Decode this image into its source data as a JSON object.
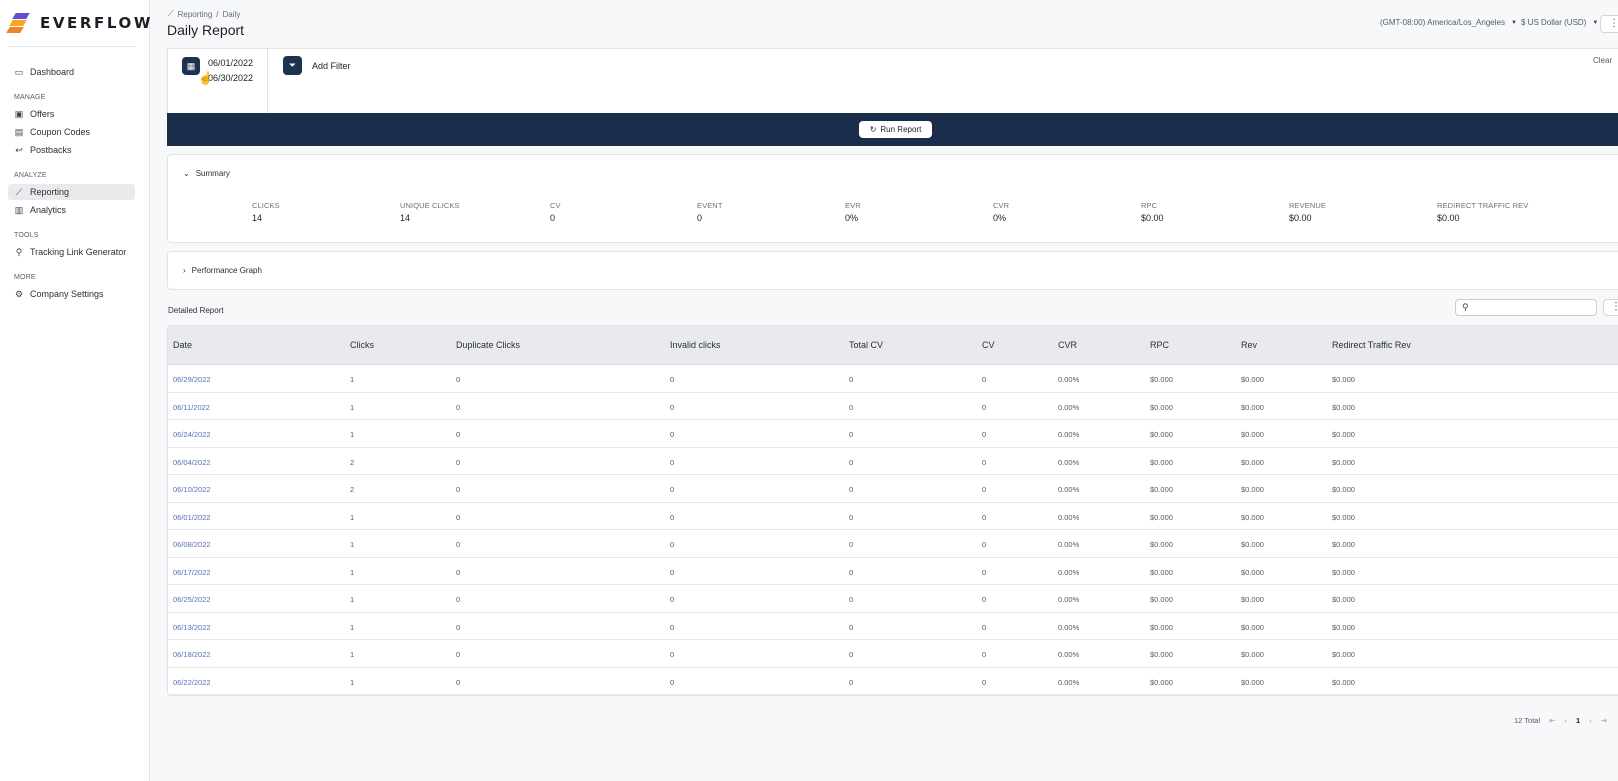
{
  "brand": {
    "name": "EVERFLOW"
  },
  "sidebar": {
    "items": [
      {
        "label": "Dashboard",
        "icon": "monitor-icon"
      },
      {
        "section": "MANAGE"
      },
      {
        "label": "Offers",
        "icon": "offers-icon"
      },
      {
        "label": "Coupon Codes",
        "icon": "coupon-icon"
      },
      {
        "label": "Postbacks",
        "icon": "postback-icon"
      },
      {
        "section": "ANALYZE"
      },
      {
        "label": "Reporting",
        "icon": "reporting-icon",
        "active": true
      },
      {
        "label": "Analytics",
        "icon": "analytics-icon"
      },
      {
        "section": "TOOLS"
      },
      {
        "label": "Tracking Link Generator",
        "icon": "link-icon"
      },
      {
        "section": "MORE"
      },
      {
        "label": "Company Settings",
        "icon": "gear-icon"
      }
    ],
    "dashboard": "Dashboard",
    "manage": "MANAGE",
    "offers": "Offers",
    "coupon_codes": "Coupon Codes",
    "postbacks": "Postbacks",
    "analyze": "ANALYZE",
    "reporting": "Reporting",
    "analytics": "Analytics",
    "tools": "TOOLS",
    "tracking_link_generator": "Tracking Link Generator",
    "more": "MORE",
    "company_settings": "Company Settings"
  },
  "header": {
    "breadcrumb_parent": "Reporting",
    "breadcrumb_sep": "/",
    "breadcrumb_current": "Daily",
    "title": "Daily Report",
    "timezone": "(GMT-08:00) America/Los_Angeles",
    "currency": "$ US Dollar (USD)"
  },
  "filters": {
    "date_start": "06/01/2022",
    "date_end": "06/30/2022",
    "add_filter": "Add Filter",
    "clear": "Clear",
    "run_report": "Run Report"
  },
  "summary": {
    "title": "Summary",
    "metrics": [
      {
        "label": "CLICKS",
        "value": "14"
      },
      {
        "label": "UNIQUE CLICKS",
        "value": "14"
      },
      {
        "label": "CV",
        "value": "0"
      },
      {
        "label": "EVENT",
        "value": "0"
      },
      {
        "label": "EVR",
        "value": "0%"
      },
      {
        "label": "CVR",
        "value": "0%"
      },
      {
        "label": "RPC",
        "value": "$0.00"
      },
      {
        "label": "REVENUE",
        "value": "$0.00"
      },
      {
        "label": "REDIRECT TRAFFIC REV",
        "value": "$0.00"
      }
    ]
  },
  "performance_graph": {
    "title": "Performance Graph"
  },
  "report": {
    "title": "Detailed Report",
    "columns": [
      "Date",
      "Clicks",
      "Duplicate Clicks",
      "Invalid clicks",
      "Total CV",
      "CV",
      "CVR",
      "RPC",
      "Rev",
      "Redirect Traffic Rev"
    ],
    "rows": [
      [
        "06/29/2022",
        "1",
        "0",
        "0",
        "0",
        "0",
        "0.00%",
        "$0.000",
        "$0.000",
        "$0.000"
      ],
      [
        "06/11/2022",
        "1",
        "0",
        "0",
        "0",
        "0",
        "0.00%",
        "$0.000",
        "$0.000",
        "$0.000"
      ],
      [
        "06/24/2022",
        "1",
        "0",
        "0",
        "0",
        "0",
        "0.00%",
        "$0.000",
        "$0.000",
        "$0.000"
      ],
      [
        "06/04/2022",
        "2",
        "0",
        "0",
        "0",
        "0",
        "0.00%",
        "$0.000",
        "$0.000",
        "$0.000"
      ],
      [
        "06/10/2022",
        "2",
        "0",
        "0",
        "0",
        "0",
        "0.00%",
        "$0.000",
        "$0.000",
        "$0.000"
      ],
      [
        "06/01/2022",
        "1",
        "0",
        "0",
        "0",
        "0",
        "0.00%",
        "$0.000",
        "$0.000",
        "$0.000"
      ],
      [
        "06/08/2022",
        "1",
        "0",
        "0",
        "0",
        "0",
        "0.00%",
        "$0.000",
        "$0.000",
        "$0.000"
      ],
      [
        "06/17/2022",
        "1",
        "0",
        "0",
        "0",
        "0",
        "0.00%",
        "$0.000",
        "$0.000",
        "$0.000"
      ],
      [
        "06/25/2022",
        "1",
        "0",
        "0",
        "0",
        "0",
        "0.00%",
        "$0.000",
        "$0.000",
        "$0.000"
      ],
      [
        "06/13/2022",
        "1",
        "0",
        "0",
        "0",
        "0",
        "0.00%",
        "$0.000",
        "$0.000",
        "$0.000"
      ],
      [
        "06/18/2022",
        "1",
        "0",
        "0",
        "0",
        "0",
        "0.00%",
        "$0.000",
        "$0.000",
        "$0.000"
      ],
      [
        "06/22/2022",
        "1",
        "0",
        "0",
        "0",
        "0",
        "0.00%",
        "$0.000",
        "$0.000",
        "$0.000"
      ]
    ]
  },
  "pagination": {
    "total": "12 Total",
    "current_page": "1"
  },
  "colors": {
    "navy": "#1a2e4c",
    "link": "#5a6fb5",
    "active_bg": "#e8eaee"
  }
}
